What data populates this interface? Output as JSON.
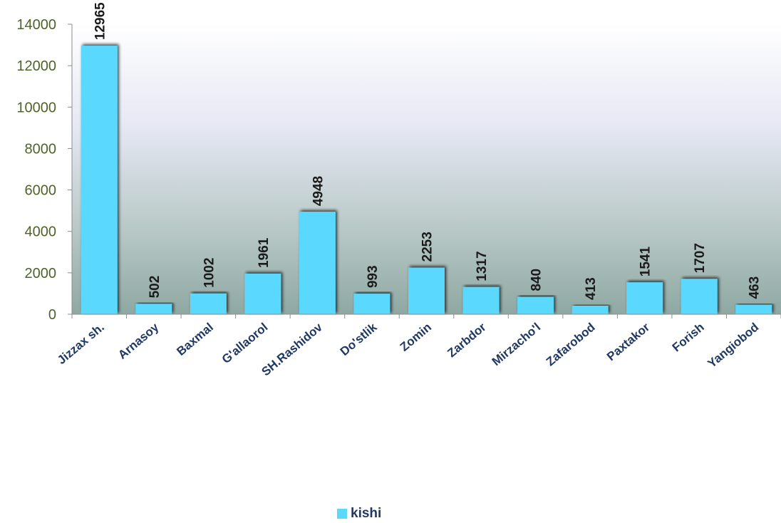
{
  "chart_data": {
    "type": "bar",
    "categories": [
      "Jizzax sh.",
      "Arnasoy",
      "Baxmal",
      "G'allaorol",
      "SH.Rashidov",
      "Do'stlik",
      "Zomin",
      "Zarbdor",
      "Mirzacho'l",
      "Zafarobod",
      "Paxtakor",
      "Forish",
      "Yangiobod"
    ],
    "series": [
      {
        "name": "kishi",
        "values": [
          12965,
          502,
          1002,
          1961,
          4948,
          993,
          2253,
          1317,
          840,
          413,
          1541,
          1707,
          463
        ]
      }
    ],
    "title": "",
    "xlabel": "",
    "ylabel": "",
    "ylim": [
      0,
      14000
    ],
    "yticks": [
      0,
      2000,
      4000,
      6000,
      8000,
      10000,
      12000,
      14000
    ],
    "grid": false,
    "legend_position": "bottom",
    "data_labels": "vertical, above bars",
    "colors": {
      "bar": "#5ad8fd",
      "background_top": "#ffffff",
      "background_bottom": "#8fa8a2",
      "ytick_text": "#4f6228",
      "xtick_text": "#1f3864"
    }
  }
}
